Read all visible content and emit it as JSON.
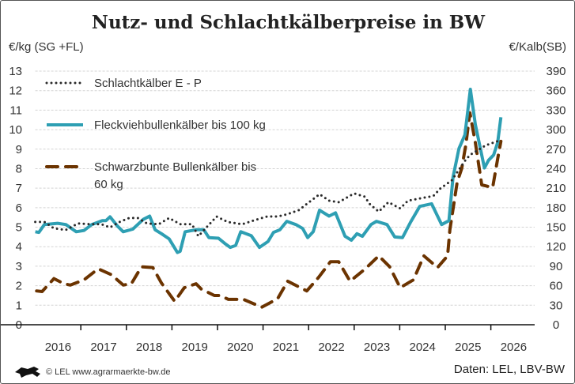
{
  "chart_data": {
    "type": "line",
    "title": "Nutz- und Schlachtkälberpreise in BW",
    "ylabel_left": "€/kg (SG +FL)",
    "ylabel_right": "€/Kalb(SB)",
    "ylim_left": [
      0,
      13
    ],
    "ylim_right": [
      0,
      390
    ],
    "yticks_left": [
      "0",
      "1",
      "2",
      "3",
      "4",
      "5",
      "6",
      "7",
      "8",
      "9",
      "10",
      "11",
      "12",
      "13"
    ],
    "yticks_right": [
      "0",
      "30",
      "60",
      "90",
      "120",
      "150",
      "180",
      "210",
      "240",
      "270",
      "300",
      "330",
      "360",
      "390"
    ],
    "xlim": [
      2016,
      2026.7
    ],
    "xticks": [
      "2016",
      "2017",
      "2018",
      "2019",
      "2020",
      "2021",
      "2022",
      "2023",
      "2024",
      "2025",
      "2026"
    ],
    "grid": true,
    "legend_position": "top-left",
    "series": [
      {
        "name": "Schlachtkälber E - P",
        "axis": "left",
        "style": "dotted",
        "color": "#2a2a2a",
        "points": [
          [
            2016.0,
            5.27
          ],
          [
            2016.2,
            5.27
          ],
          [
            2016.41,
            4.94
          ],
          [
            2016.67,
            4.86
          ],
          [
            2016.94,
            5.19
          ],
          [
            2017.24,
            5.15
          ],
          [
            2017.45,
            5.15
          ],
          [
            2017.64,
            4.99
          ],
          [
            2017.85,
            5.27
          ],
          [
            2018.06,
            5.47
          ],
          [
            2018.25,
            5.47
          ],
          [
            2018.45,
            5.19
          ],
          [
            2018.71,
            5.15
          ],
          [
            2018.94,
            5.47
          ],
          [
            2019.18,
            5.15
          ],
          [
            2019.44,
            5.15
          ],
          [
            2019.58,
            4.54
          ],
          [
            2019.79,
            5.07
          ],
          [
            2019.98,
            5.55
          ],
          [
            2020.22,
            5.27
          ],
          [
            2020.54,
            5.15
          ],
          [
            2020.8,
            5.35
          ],
          [
            2021.09,
            5.55
          ],
          [
            2021.32,
            5.55
          ],
          [
            2021.54,
            5.67
          ],
          [
            2021.79,
            5.88
          ],
          [
            2022.01,
            6.28
          ],
          [
            2022.24,
            6.69
          ],
          [
            2022.45,
            6.36
          ],
          [
            2022.66,
            6.28
          ],
          [
            2023.0,
            6.73
          ],
          [
            2023.23,
            6.57
          ],
          [
            2023.35,
            6.16
          ],
          [
            2023.54,
            5.8
          ],
          [
            2023.75,
            6.28
          ],
          [
            2024.01,
            5.96
          ],
          [
            2024.18,
            6.36
          ],
          [
            2024.74,
            6.6
          ],
          [
            2024.9,
            7.0
          ],
          [
            2025.14,
            7.4
          ],
          [
            2025.43,
            8.4
          ],
          [
            2025.54,
            8.7
          ],
          [
            2025.89,
            9.2
          ],
          [
            2026.2,
            9.45
          ]
        ]
      },
      {
        "name": "Fleckviehbullenkälber bis 100 kg",
        "axis": "right",
        "style": "solid",
        "color": "#2e9fb3",
        "points": [
          [
            2016.0,
            143
          ],
          [
            2016.08,
            142
          ],
          [
            2016.2,
            154
          ],
          [
            2016.49,
            156
          ],
          [
            2016.67,
            154
          ],
          [
            2016.9,
            143
          ],
          [
            2017.07,
            145
          ],
          [
            2017.24,
            154
          ],
          [
            2017.47,
            160
          ],
          [
            2017.55,
            160
          ],
          [
            2017.64,
            166
          ],
          [
            2017.8,
            152
          ],
          [
            2017.93,
            143
          ],
          [
            2018.14,
            147
          ],
          [
            2018.37,
            162
          ],
          [
            2018.51,
            167
          ],
          [
            2018.63,
            146
          ],
          [
            2018.77,
            140
          ],
          [
            2018.94,
            132
          ],
          [
            2019.06,
            118
          ],
          [
            2019.12,
            111
          ],
          [
            2019.18,
            113
          ],
          [
            2019.29,
            143
          ],
          [
            2019.53,
            146
          ],
          [
            2019.7,
            146
          ],
          [
            2019.81,
            134
          ],
          [
            2020.02,
            133
          ],
          [
            2020.16,
            125
          ],
          [
            2020.28,
            119
          ],
          [
            2020.4,
            122
          ],
          [
            2020.51,
            143
          ],
          [
            2020.74,
            137
          ],
          [
            2020.92,
            119
          ],
          [
            2021.11,
            128
          ],
          [
            2021.23,
            142
          ],
          [
            2021.37,
            146
          ],
          [
            2021.52,
            159
          ],
          [
            2021.72,
            154
          ],
          [
            2021.87,
            148
          ],
          [
            2021.98,
            134
          ],
          [
            2022.1,
            143
          ],
          [
            2022.24,
            176
          ],
          [
            2022.45,
            167
          ],
          [
            2022.59,
            172
          ],
          [
            2022.8,
            136
          ],
          [
            2022.94,
            130
          ],
          [
            2023.06,
            140
          ],
          [
            2023.18,
            136
          ],
          [
            2023.37,
            154
          ],
          [
            2023.49,
            159
          ],
          [
            2023.72,
            154
          ],
          [
            2023.89,
            135
          ],
          [
            2024.06,
            134
          ],
          [
            2024.24,
            158
          ],
          [
            2024.44,
            182
          ],
          [
            2024.7,
            186
          ],
          [
            2024.92,
            154
          ],
          [
            2025.08,
            160
          ],
          [
            2025.17,
            227
          ],
          [
            2025.3,
            271
          ],
          [
            2025.43,
            292
          ],
          [
            2025.55,
            362
          ],
          [
            2025.66,
            308
          ],
          [
            2025.86,
            241
          ],
          [
            2025.95,
            253
          ],
          [
            2026.06,
            261
          ],
          [
            2026.15,
            280
          ],
          [
            2026.22,
            319
          ]
        ]
      },
      {
        "name": "Schwarzbunte Bullenkälber bis 60 kg",
        "axis": "right",
        "style": "dashed",
        "color": "#6b3300",
        "points": [
          [
            2016.03,
            52
          ],
          [
            2016.15,
            51
          ],
          [
            2016.41,
            71
          ],
          [
            2016.63,
            63
          ],
          [
            2016.77,
            61
          ],
          [
            2017.07,
            69
          ],
          [
            2017.38,
            86
          ],
          [
            2017.67,
            77
          ],
          [
            2017.93,
            61
          ],
          [
            2018.11,
            63
          ],
          [
            2018.33,
            89
          ],
          [
            2018.58,
            88
          ],
          [
            2018.77,
            64
          ],
          [
            2019.06,
            36
          ],
          [
            2019.27,
            57
          ],
          [
            2019.53,
            63
          ],
          [
            2019.64,
            55
          ],
          [
            2019.93,
            45
          ],
          [
            2020.05,
            45
          ],
          [
            2020.24,
            39
          ],
          [
            2020.57,
            39
          ],
          [
            2020.97,
            27
          ],
          [
            2021.32,
            40
          ],
          [
            2021.54,
            67
          ],
          [
            2021.96,
            52
          ],
          [
            2022.22,
            73
          ],
          [
            2022.48,
            97
          ],
          [
            2022.66,
            97
          ],
          [
            2022.91,
            67
          ],
          [
            2023.23,
            85
          ],
          [
            2023.54,
            106
          ],
          [
            2023.78,
            89
          ],
          [
            2024.01,
            57
          ],
          [
            2024.3,
            69
          ],
          [
            2024.53,
            106
          ],
          [
            2024.83,
            88
          ],
          [
            2025.05,
            106
          ],
          [
            2025.1,
            146
          ],
          [
            2025.26,
            219
          ],
          [
            2025.36,
            240
          ],
          [
            2025.45,
            276
          ],
          [
            2025.54,
            326
          ],
          [
            2025.66,
            280
          ],
          [
            2025.8,
            215
          ],
          [
            2026.04,
            211
          ],
          [
            2026.15,
            255
          ],
          [
            2026.22,
            282
          ]
        ]
      }
    ]
  },
  "legend": {
    "items": [
      "Schlachtkälber E - P",
      "Fleckviehbullenkälber bis 100 kg",
      "Schwarzbunte Bullenkälber bis",
      "60 kg"
    ]
  },
  "footer": {
    "copyright": "© LEL www.agrarmaerkte-bw.de",
    "source": "Daten: LEL, LBV-BW"
  }
}
